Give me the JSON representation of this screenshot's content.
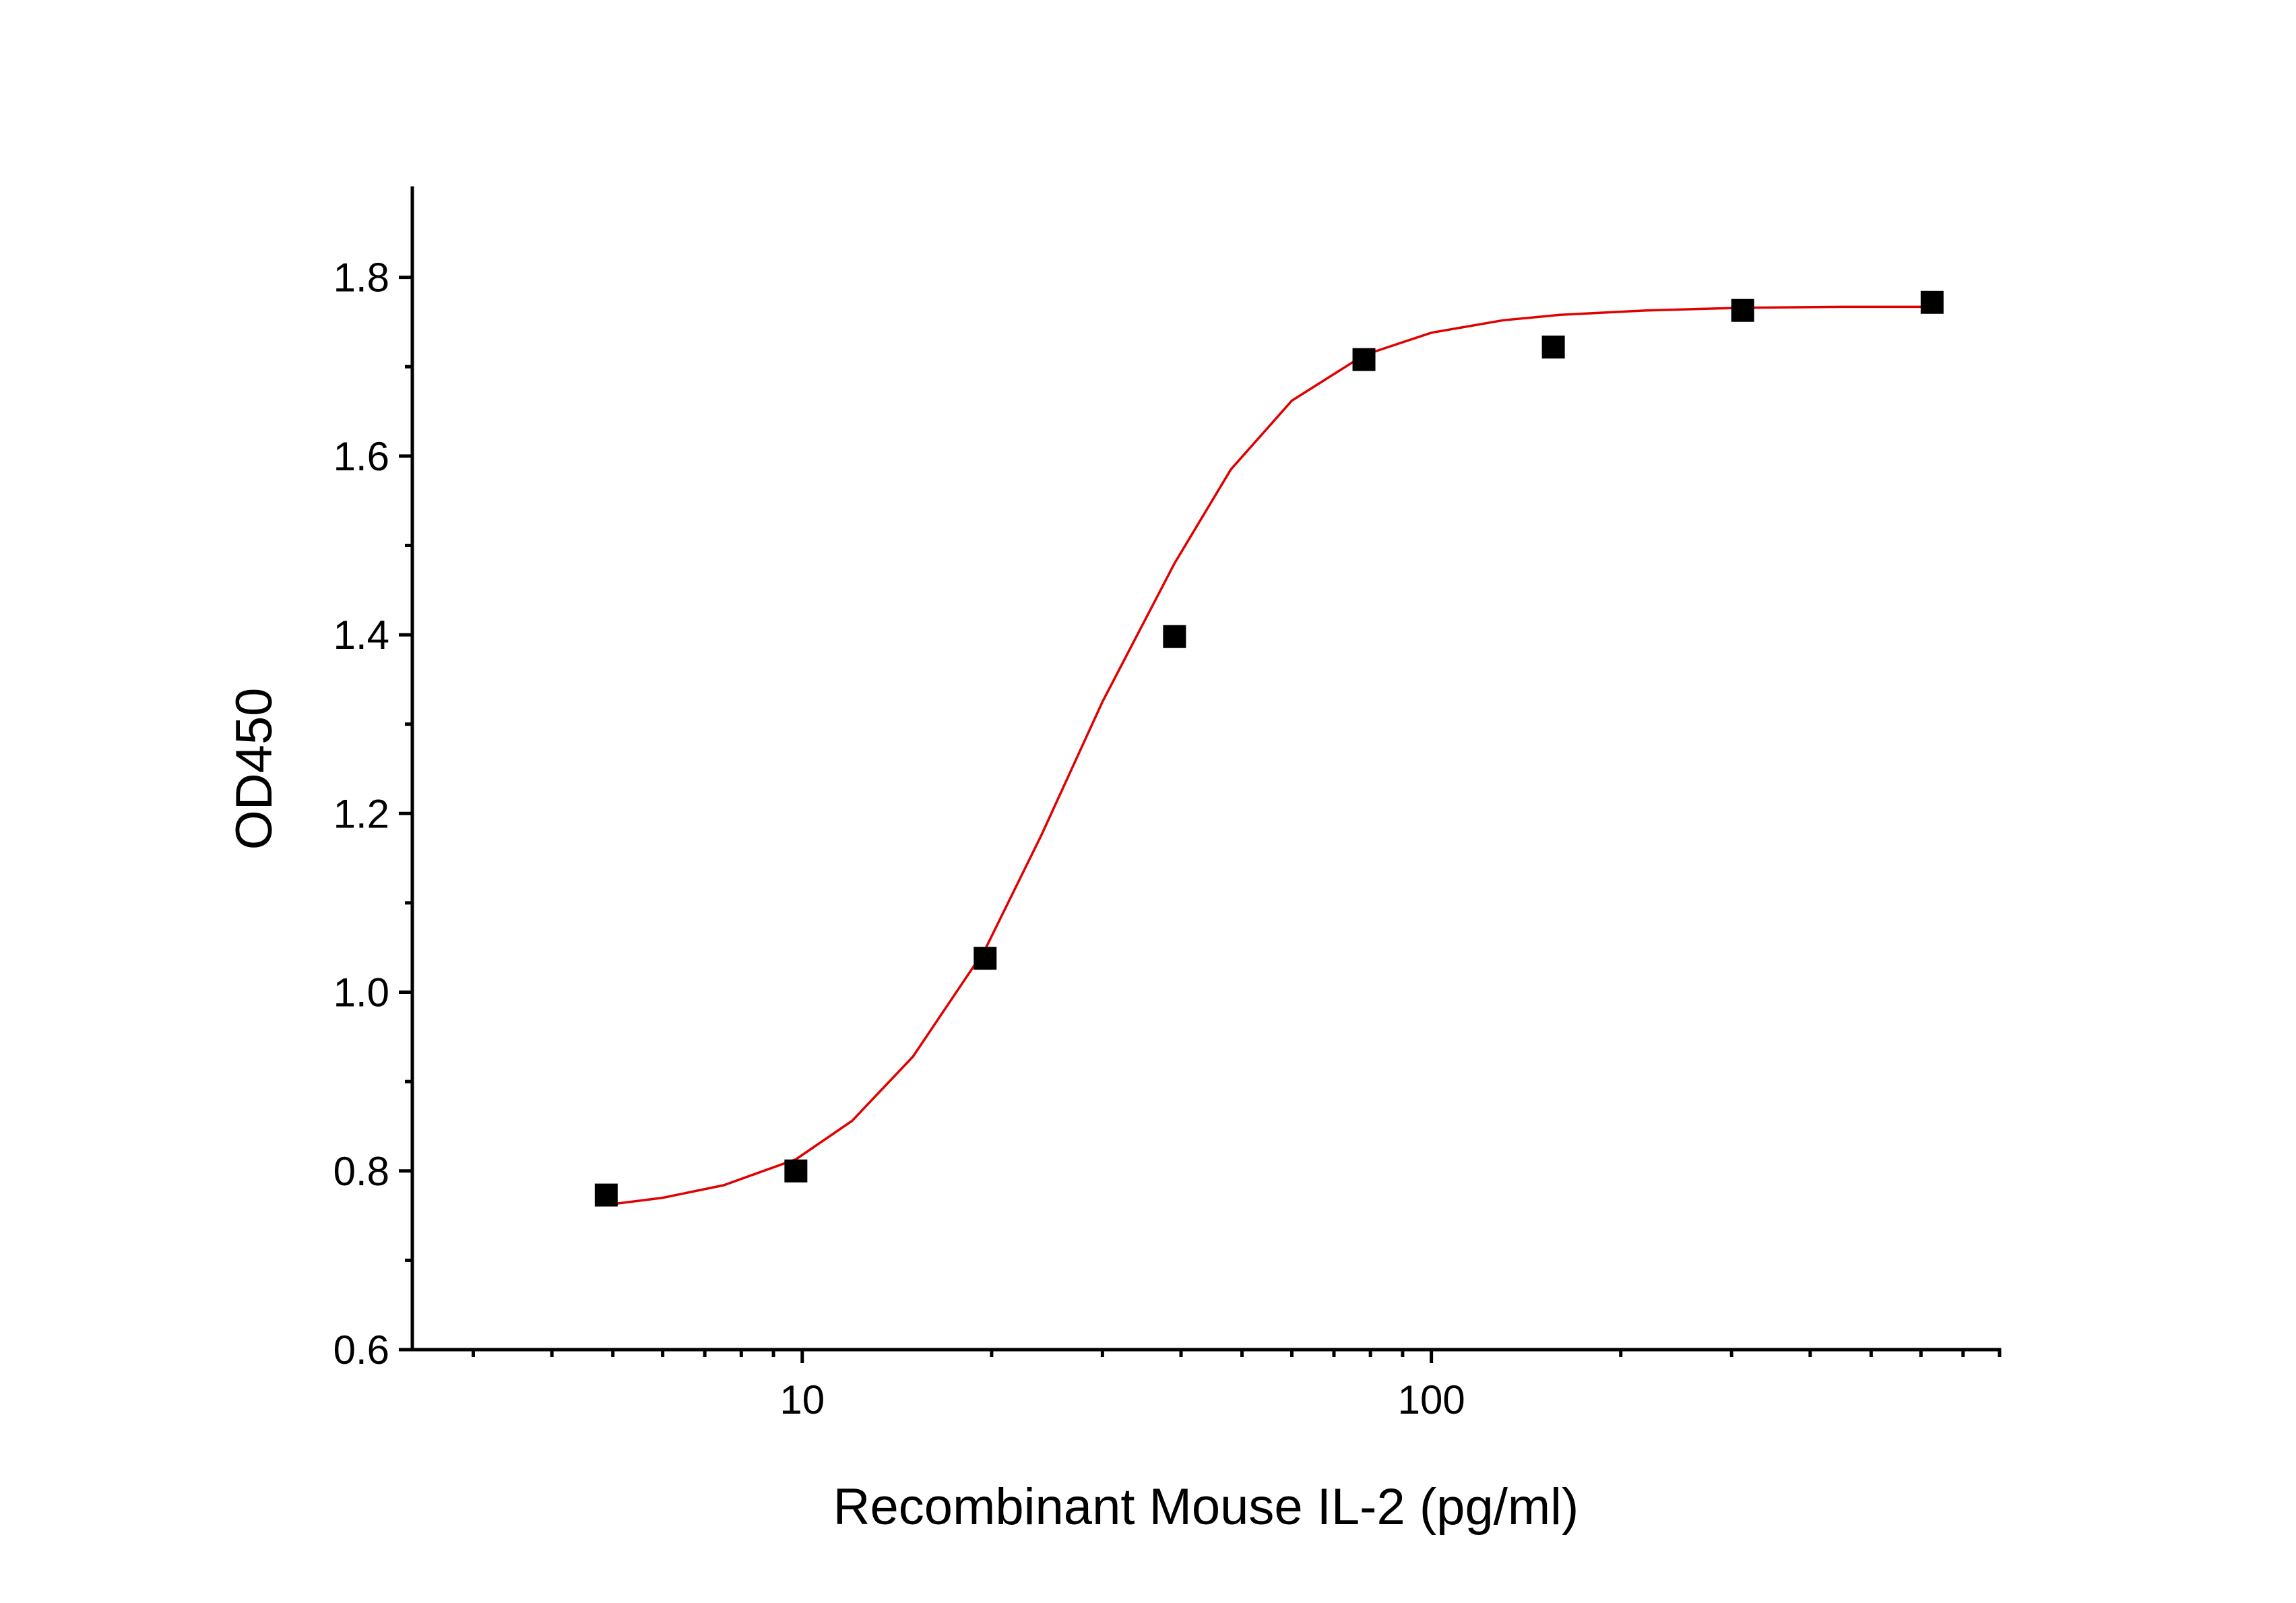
{
  "chart_data": {
    "type": "scatter",
    "title": "",
    "xlabel": "Recombinant Mouse IL-2 (pg/ml)",
    "ylabel": "OD450",
    "xscale": "log",
    "xlim": [
      2.4,
      800
    ],
    "ylim": [
      0.6,
      1.9
    ],
    "x_ticks": [
      10,
      100
    ],
    "x_tick_labels": [
      "10",
      "100"
    ],
    "y_ticks": [
      0.6,
      0.8,
      1.0,
      1.2,
      1.4,
      1.6,
      1.8
    ],
    "y_tick_labels": [
      "0.6",
      "0.8",
      "1.0",
      "1.2",
      "1.4",
      "1.6",
      "1.8"
    ],
    "grid": false,
    "legend": "none",
    "series": [
      {
        "type": "scatter",
        "marker": "square",
        "color": "#000000",
        "x": [
          4.88,
          9.77,
          19.53,
          39.06,
          78.13,
          156.25,
          312.5,
          625
        ],
        "y": [
          0.773,
          0.8,
          1.038,
          1.398,
          1.708,
          1.722,
          1.763,
          1.772
        ]
      },
      {
        "type": "line",
        "fit": "4PL",
        "color": "#e00000",
        "x": [
          4.88,
          6,
          7.5,
          9.77,
          12,
          15,
          19.53,
          24,
          30,
          39.06,
          48,
          60,
          78.13,
          100,
          130,
          160,
          220,
          312.5,
          450,
          625
        ],
        "y": [
          0.762,
          0.77,
          0.784,
          0.813,
          0.856,
          0.928,
          1.048,
          1.176,
          1.325,
          1.48,
          1.585,
          1.662,
          1.713,
          1.738,
          1.752,
          1.758,
          1.763,
          1.766,
          1.767,
          1.767
        ]
      }
    ]
  }
}
